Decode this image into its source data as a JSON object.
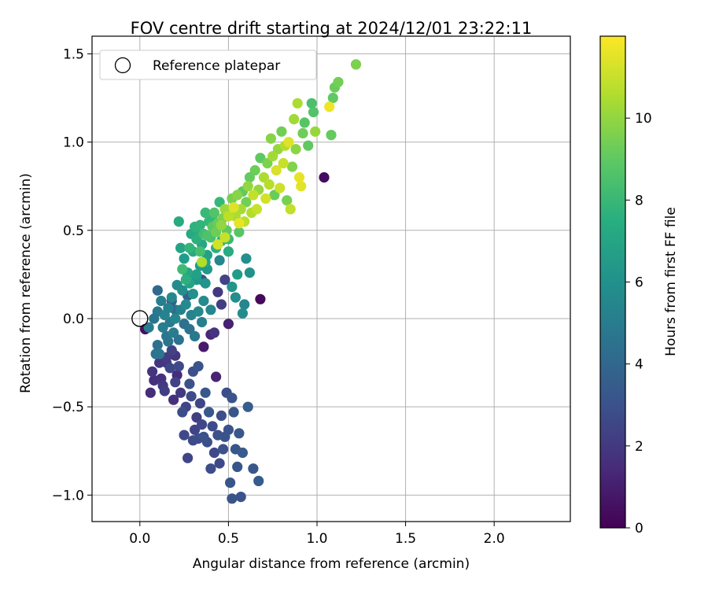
{
  "chart_data": {
    "type": "scatter",
    "title": "FOV centre drift starting at 2024/12/01 23:22:11",
    "xlabel": "Angular distance from reference (arcmin)",
    "ylabel": "Rotation from reference (arcmin)",
    "xlim": [
      -0.27,
      2.43
    ],
    "ylim": [
      -1.15,
      1.6
    ],
    "xticks": [
      0.0,
      0.5,
      1.0,
      1.5,
      2.0
    ],
    "yticks": [
      -1.0,
      -0.5,
      0.0,
      0.5,
      1.0,
      1.5
    ],
    "xtick_labels": [
      "0.0",
      "0.5",
      "1.0",
      "1.5",
      "2.0"
    ],
    "ytick_labels": [
      "−1.0",
      "−0.5",
      "0.0",
      "0.5",
      "1.0",
      "1.5"
    ],
    "grid": true,
    "legend": {
      "label": "Reference platepar",
      "placement": "top-left"
    },
    "reference": {
      "x": 0.0,
      "y": 0.0
    },
    "colorbar": {
      "label": "Hours from first FF file",
      "range": [
        0,
        12
      ],
      "ticks": [
        0,
        2,
        4,
        6,
        8,
        10
      ],
      "colormap": "viridis"
    },
    "points": [
      [
        0.03,
        -0.06,
        0.5
      ],
      [
        0.06,
        -0.42,
        1.5
      ],
      [
        0.07,
        -0.3,
        1.8
      ],
      [
        0.08,
        -0.35,
        1.6
      ],
      [
        0.09,
        -0.2,
        4.5
      ],
      [
        0.1,
        -0.15,
        4.4
      ],
      [
        0.11,
        -0.25,
        1.9
      ],
      [
        0.12,
        -0.34,
        1.7
      ],
      [
        0.13,
        -0.38,
        2.0
      ],
      [
        0.14,
        -0.41,
        2.2
      ],
      [
        0.15,
        -0.22,
        2.1
      ],
      [
        0.16,
        -0.13,
        4.6
      ],
      [
        0.17,
        -0.28,
        2.5
      ],
      [
        0.18,
        -0.18,
        2.3
      ],
      [
        0.19,
        -0.46,
        1.6
      ],
      [
        0.2,
        -0.36,
        2.4
      ],
      [
        0.21,
        -0.32,
        1.5
      ],
      [
        0.22,
        -0.27,
        2.6
      ],
      [
        0.23,
        -0.42,
        2.0
      ],
      [
        0.24,
        -0.53,
        2.8
      ],
      [
        0.25,
        -0.66,
        2.6
      ],
      [
        0.26,
        -0.5,
        2.4
      ],
      [
        0.27,
        -0.79,
        2.5
      ],
      [
        0.28,
        -0.37,
        3.0
      ],
      [
        0.29,
        -0.44,
        2.7
      ],
      [
        0.3,
        -0.3,
        2.9
      ],
      [
        0.31,
        -0.63,
        2.4
      ],
      [
        0.32,
        -0.56,
        2.2
      ],
      [
        0.33,
        -0.27,
        3.1
      ],
      [
        0.34,
        -0.48,
        2.5
      ],
      [
        0.35,
        -0.6,
        2.6
      ],
      [
        0.36,
        -0.67,
        3.0
      ],
      [
        0.37,
        -0.42,
        3.3
      ],
      [
        0.38,
        -0.7,
        2.9
      ],
      [
        0.39,
        -0.53,
        3.3
      ],
      [
        0.4,
        -0.85,
        2.8
      ],
      [
        0.41,
        -0.61,
        2.7
      ],
      [
        0.42,
        -0.76,
        2.6
      ],
      [
        0.43,
        -0.33,
        1.2
      ],
      [
        0.44,
        -0.66,
        3.0
      ],
      [
        0.45,
        -0.82,
        2.6
      ],
      [
        0.46,
        -0.55,
        2.9
      ],
      [
        0.47,
        -0.74,
        3.0
      ],
      [
        0.48,
        -0.67,
        3.1
      ],
      [
        0.49,
        -0.42,
        2.8
      ],
      [
        0.5,
        -0.63,
        3.1
      ],
      [
        0.51,
        -0.93,
        3.2
      ],
      [
        0.52,
        -1.02,
        3.1
      ],
      [
        0.53,
        -0.53,
        3.2
      ],
      [
        0.54,
        -0.74,
        3.2
      ],
      [
        0.55,
        -0.84,
        3.2
      ],
      [
        0.56,
        -0.65,
        3.3
      ],
      [
        0.57,
        -1.01,
        3.0
      ],
      [
        0.58,
        -0.76,
        3.4
      ],
      [
        0.61,
        -0.5,
        3.5
      ],
      [
        0.64,
        -0.85,
        3.3
      ],
      [
        0.67,
        -0.92,
        3.4
      ],
      [
        0.52,
        -0.45,
        3.1
      ],
      [
        0.3,
        -0.69,
        2.7
      ],
      [
        0.33,
        -0.68,
        2.8
      ],
      [
        0.05,
        -0.05,
        5.0
      ],
      [
        0.08,
        0.0,
        4.6
      ],
      [
        0.1,
        0.04,
        4.8
      ],
      [
        0.12,
        0.1,
        5.2
      ],
      [
        0.13,
        -0.05,
        5.1
      ],
      [
        0.14,
        0.02,
        5.4
      ],
      [
        0.15,
        -0.1,
        4.7
      ],
      [
        0.16,
        0.06,
        5.3
      ],
      [
        0.17,
        -0.02,
        4.9
      ],
      [
        0.18,
        0.12,
        5.6
      ],
      [
        0.19,
        -0.08,
        5.0
      ],
      [
        0.2,
        0.0,
        5.5
      ],
      [
        0.21,
        0.19,
        5.8
      ],
      [
        0.22,
        -0.12,
        4.5
      ],
      [
        0.23,
        0.05,
        5.3
      ],
      [
        0.24,
        0.16,
        5.9
      ],
      [
        0.25,
        -0.03,
        4.4
      ],
      [
        0.26,
        0.08,
        5.7
      ],
      [
        0.27,
        0.25,
        6.1
      ],
      [
        0.28,
        -0.06,
        4.6
      ],
      [
        0.29,
        0.02,
        5.4
      ],
      [
        0.3,
        0.14,
        6.0
      ],
      [
        0.31,
        -0.1,
        4.8
      ],
      [
        0.32,
        0.22,
        6.3
      ],
      [
        0.33,
        0.04,
        5.6
      ],
      [
        0.34,
        0.3,
        6.5
      ],
      [
        0.35,
        -0.02,
        5.2
      ],
      [
        0.36,
        0.1,
        5.8
      ],
      [
        0.37,
        0.2,
        6.2
      ],
      [
        0.38,
        0.28,
        6.4
      ],
      [
        0.4,
        0.05,
        5.5
      ],
      [
        0.42,
        -0.08,
        1.8
      ],
      [
        0.44,
        0.15,
        2.0
      ],
      [
        0.46,
        0.08,
        2.2
      ],
      [
        0.48,
        0.22,
        2.4
      ],
      [
        0.5,
        -0.03,
        1.1
      ],
      [
        0.52,
        0.18,
        6.2
      ],
      [
        0.54,
        0.12,
        5.9
      ],
      [
        0.55,
        0.25,
        6.6
      ],
      [
        0.58,
        0.03,
        5.8
      ],
      [
        0.6,
        0.34,
        6.0
      ],
      [
        0.62,
        0.26,
        6.1
      ],
      [
        0.59,
        0.08,
        5.5
      ],
      [
        0.68,
        0.11,
        0.3
      ],
      [
        0.1,
        0.16,
        4.0
      ],
      [
        0.18,
        0.1,
        3.5
      ],
      [
        0.2,
        0.05,
        4.2
      ],
      [
        0.27,
        0.13,
        3.7
      ],
      [
        0.35,
        0.22,
        3.0
      ],
      [
        0.45,
        0.33,
        5.5
      ],
      [
        0.15,
        -0.25,
        2.0
      ],
      [
        0.2,
        -0.21,
        1.9
      ],
      [
        0.4,
        -0.09,
        1.3
      ],
      [
        0.36,
        -0.16,
        0.9
      ],
      [
        0.11,
        -0.2,
        4.7
      ],
      [
        0.22,
        0.55,
        7.3
      ],
      [
        0.23,
        0.4,
        7.0
      ],
      [
        0.25,
        0.34,
        6.6
      ],
      [
        0.27,
        0.26,
        7.1
      ],
      [
        0.28,
        0.2,
        6.9
      ],
      [
        0.3,
        0.38,
        7.2
      ],
      [
        0.32,
        0.45,
        7.5
      ],
      [
        0.33,
        0.5,
        7.4
      ],
      [
        0.34,
        0.53,
        7.8
      ],
      [
        0.35,
        0.42,
        7.1
      ],
      [
        0.36,
        0.48,
        8.3
      ],
      [
        0.37,
        0.32,
        7.0
      ],
      [
        0.38,
        0.36,
        6.8
      ],
      [
        0.39,
        0.55,
        8.0
      ],
      [
        0.4,
        0.46,
        8.5
      ],
      [
        0.41,
        0.52,
        8.9
      ],
      [
        0.42,
        0.6,
        8.7
      ],
      [
        0.43,
        0.4,
        7.5
      ],
      [
        0.44,
        0.54,
        9.2
      ],
      [
        0.45,
        0.66,
        8.0
      ],
      [
        0.46,
        0.44,
        7.6
      ],
      [
        0.47,
        0.57,
        9.6
      ],
      [
        0.48,
        0.62,
        10.2
      ],
      [
        0.49,
        0.5,
        9.0
      ],
      [
        0.5,
        0.45,
        8.1
      ],
      [
        0.52,
        0.68,
        9.5
      ],
      [
        0.54,
        0.58,
        10.5
      ],
      [
        0.55,
        0.7,
        9.8
      ],
      [
        0.56,
        0.49,
        8.8
      ],
      [
        0.57,
        0.62,
        10.4
      ],
      [
        0.58,
        0.72,
        9.0
      ],
      [
        0.59,
        0.55,
        10.8
      ],
      [
        0.6,
        0.66,
        9.4
      ],
      [
        0.61,
        0.75,
        10.0
      ],
      [
        0.62,
        0.8,
        9.1
      ],
      [
        0.63,
        0.6,
        10.6
      ],
      [
        0.64,
        0.7,
        10.9
      ],
      [
        0.65,
        0.84,
        9.3
      ],
      [
        0.66,
        0.62,
        11.0
      ],
      [
        0.67,
        0.73,
        10.1
      ],
      [
        0.68,
        0.91,
        9.0
      ],
      [
        0.7,
        0.8,
        10.5
      ],
      [
        0.71,
        0.68,
        11.2
      ],
      [
        0.72,
        0.88,
        9.6
      ],
      [
        0.73,
        0.76,
        10.7
      ],
      [
        0.74,
        1.02,
        9.8
      ],
      [
        0.75,
        0.92,
        10.3
      ],
      [
        0.76,
        0.7,
        9.2
      ],
      [
        0.77,
        0.84,
        11.3
      ],
      [
        0.78,
        0.96,
        10.1
      ],
      [
        0.79,
        0.74,
        11.1
      ],
      [
        0.8,
        1.06,
        9.4
      ],
      [
        0.81,
        0.88,
        11.0
      ],
      [
        0.82,
        0.98,
        10.6
      ],
      [
        0.83,
        0.67,
        9.5
      ],
      [
        0.84,
        1.0,
        11.4
      ],
      [
        0.85,
        0.62,
        10.9
      ],
      [
        0.86,
        0.86,
        9.7
      ],
      [
        0.87,
        1.13,
        10.3
      ],
      [
        0.88,
        0.96,
        9.9
      ],
      [
        0.89,
        1.22,
        10.5
      ],
      [
        0.9,
        0.8,
        11.6
      ],
      [
        0.91,
        0.75,
        11.5
      ],
      [
        0.92,
        1.05,
        9.3
      ],
      [
        0.93,
        1.11,
        8.8
      ],
      [
        0.95,
        0.98,
        9.0
      ],
      [
        0.97,
        1.22,
        8.5
      ],
      [
        0.98,
        1.17,
        8.7
      ],
      [
        0.99,
        1.06,
        10.1
      ],
      [
        1.04,
        0.8,
        0.4
      ],
      [
        1.07,
        1.2,
        11.7
      ],
      [
        1.08,
        1.04,
        9.1
      ],
      [
        1.09,
        1.25,
        9.0
      ],
      [
        1.1,
        1.31,
        9.2
      ],
      [
        1.12,
        1.34,
        9.4
      ],
      [
        1.22,
        1.44,
        9.6
      ],
      [
        0.24,
        0.28,
        8.2
      ],
      [
        0.28,
        0.4,
        7.9
      ],
      [
        0.34,
        0.38,
        8.4
      ],
      [
        0.38,
        0.47,
        8.6
      ],
      [
        0.43,
        0.49,
        9.3
      ],
      [
        0.46,
        0.53,
        10.0
      ],
      [
        0.5,
        0.58,
        10.8
      ],
      [
        0.53,
        0.63,
        11.4
      ],
      [
        0.35,
        0.32,
        10.6
      ],
      [
        0.44,
        0.42,
        11.2
      ],
      [
        0.48,
        0.46,
        11.0
      ],
      [
        0.56,
        0.54,
        11.6
      ],
      [
        0.32,
        0.25,
        6.8
      ],
      [
        0.26,
        0.22,
        7.6
      ],
      [
        0.31,
        0.52,
        7.7
      ],
      [
        0.29,
        0.48,
        7.2
      ],
      [
        0.37,
        0.6,
        8.1
      ],
      [
        0.41,
        0.58,
        8.0
      ],
      [
        0.5,
        0.38,
        7.3
      ]
    ]
  }
}
